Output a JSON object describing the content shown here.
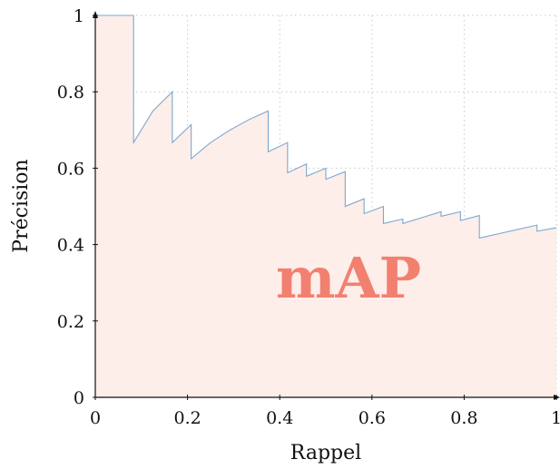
{
  "chart_data": {
    "type": "area",
    "xlabel": "Rappel",
    "ylabel": "Précision",
    "xlim": [
      0,
      1
    ],
    "ylim": [
      0,
      1
    ],
    "grid": true,
    "x_ticks": [
      0,
      0.2,
      0.4,
      0.6,
      0.8,
      1
    ],
    "y_ticks": [
      0,
      0.2,
      0.4,
      0.6,
      0.8,
      1
    ],
    "x_tick_labels": [
      "0",
      "0.2",
      "0.4",
      "0.6",
      "0.8",
      "1"
    ],
    "y_tick_labels": [
      "0",
      "0.2",
      "0.4",
      "0.6",
      "0.8",
      "1"
    ],
    "annotation": "mAP",
    "colors": {
      "line": "#7ba7d0",
      "fill": "#fdeeea",
      "annotation": "#f28070",
      "grid": "#c8c8c8"
    },
    "series": [
      {
        "x": [
          0,
          0.083,
          0.083,
          0.125,
          0.167,
          0.167,
          0.208,
          0.208,
          0.25,
          0.292,
          0.333,
          0.375,
          0.375,
          0.417,
          0.417,
          0.458,
          0.458,
          0.5,
          0.5,
          0.542,
          0.542,
          0.583,
          0.583,
          0.625,
          0.625,
          0.667,
          0.667,
          0.75,
          0.75,
          0.792,
          0.792,
          0.833,
          0.833,
          0.958,
          0.958,
          1
        ],
        "y": [
          1,
          1,
          0.667,
          0.75,
          0.8,
          0.667,
          0.714,
          0.625,
          0.667,
          0.7,
          0.727,
          0.75,
          0.643,
          0.667,
          0.588,
          0.611,
          0.579,
          0.6,
          0.571,
          0.591,
          0.5,
          0.52,
          0.481,
          0.5,
          0.455,
          0.467,
          0.455,
          0.486,
          0.474,
          0.486,
          0.463,
          0.476,
          0.417,
          0.451,
          0.435,
          0.444
        ]
      }
    ]
  }
}
